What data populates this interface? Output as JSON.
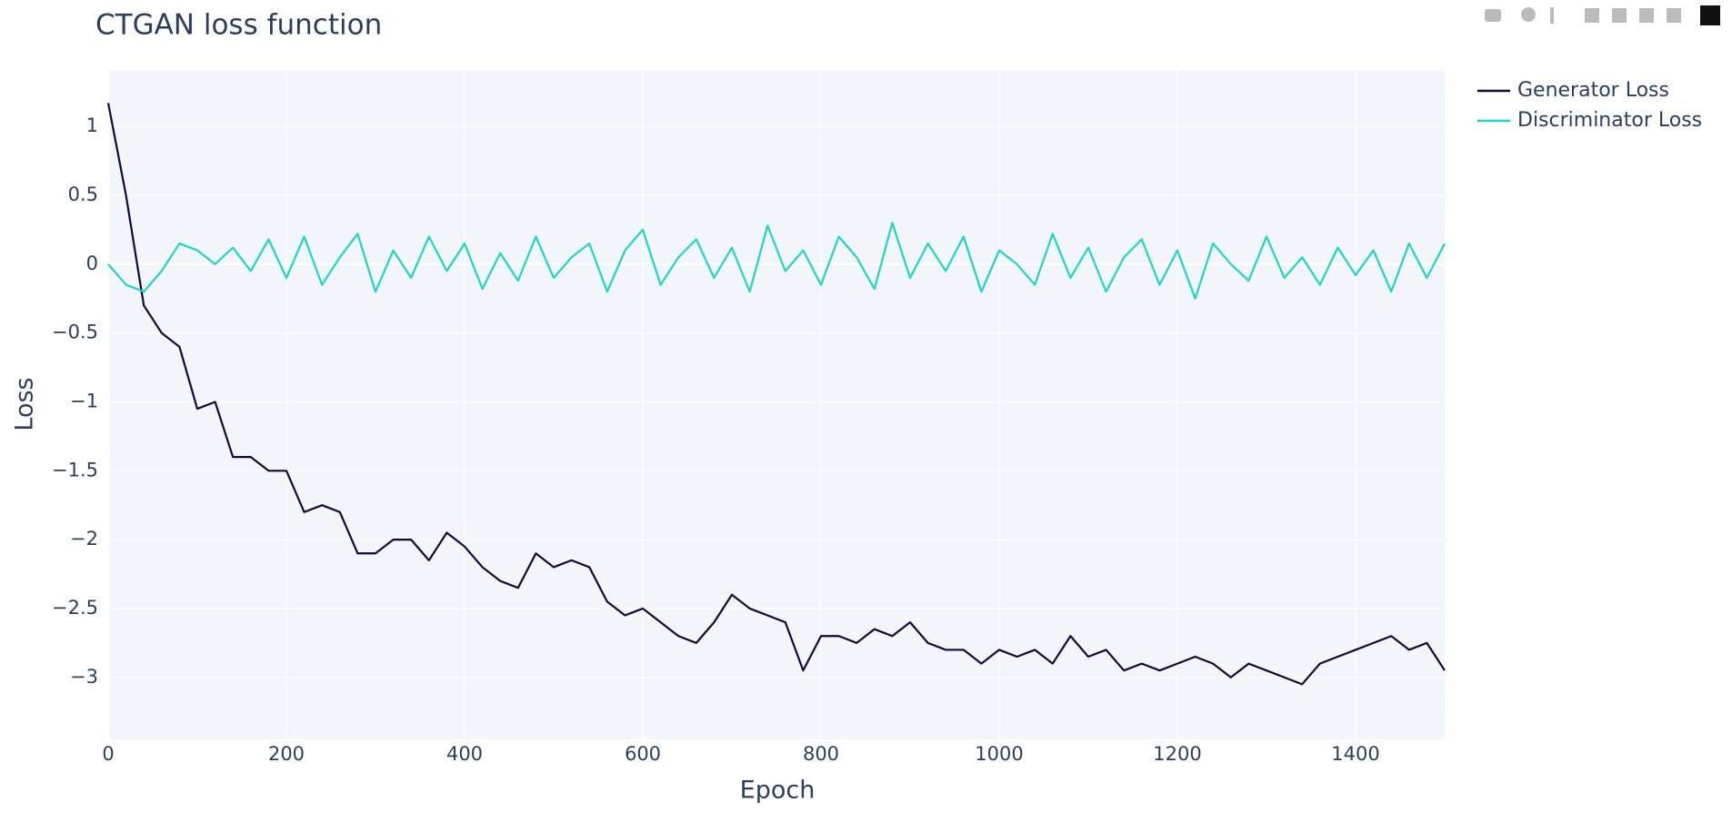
{
  "chart_data": {
    "type": "line",
    "title": "CTGAN loss function",
    "x_label": "Epoch",
    "y_label": "Loss",
    "x": [
      0,
      20,
      40,
      60,
      80,
      100,
      120,
      140,
      160,
      180,
      200,
      220,
      240,
      260,
      280,
      300,
      320,
      340,
      360,
      380,
      400,
      420,
      440,
      460,
      480,
      500,
      520,
      540,
      560,
      580,
      600,
      620,
      640,
      660,
      680,
      700,
      720,
      740,
      760,
      780,
      800,
      820,
      840,
      860,
      880,
      900,
      920,
      940,
      960,
      980,
      1000,
      1020,
      1040,
      1060,
      1080,
      1100,
      1120,
      1140,
      1160,
      1180,
      1200,
      1220,
      1240,
      1260,
      1280,
      1300,
      1320,
      1340,
      1360,
      1380,
      1400,
      1420,
      1440,
      1460,
      1480,
      1500
    ],
    "series": [
      {
        "name": "Generator Loss",
        "color": "#0a0a3c",
        "values": [
          1.17,
          0.5,
          -0.3,
          -0.5,
          -0.6,
          -1.05,
          -1.0,
          -1.4,
          -1.4,
          -1.5,
          -1.5,
          -1.8,
          -1.75,
          -1.8,
          -2.1,
          -2.1,
          -2.0,
          -2.0,
          -2.15,
          -1.95,
          -2.05,
          -2.2,
          -2.3,
          -2.35,
          -2.1,
          -2.2,
          -2.15,
          -2.2,
          -2.45,
          -2.55,
          -2.5,
          -2.6,
          -2.7,
          -2.75,
          -2.6,
          -2.4,
          -2.5,
          -2.55,
          -2.6,
          -2.95,
          -2.7,
          -2.7,
          -2.75,
          -2.65,
          -2.7,
          -2.6,
          -2.75,
          -2.8,
          -2.8,
          -2.9,
          -2.8,
          -2.85,
          -2.8,
          -2.9,
          -2.7,
          -2.85,
          -2.8,
          -2.95,
          -2.9,
          -2.95,
          -2.9,
          -2.85,
          -2.9,
          -3.0,
          -2.9,
          -2.95,
          -3.0,
          -3.05,
          -2.9,
          -2.85,
          -2.8,
          -2.75,
          -2.7,
          -2.8,
          -2.75,
          -2.95
        ]
      },
      {
        "name": "Discriminator Loss",
        "color": "#1dd6c4",
        "values": [
          0,
          -0.15,
          -0.2,
          -0.05,
          0.15,
          0.1,
          0.0,
          0.12,
          -0.05,
          0.18,
          -0.1,
          0.2,
          -0.15,
          0.05,
          0.22,
          -0.2,
          0.1,
          -0.1,
          0.2,
          -0.05,
          0.15,
          -0.18,
          0.08,
          -0.12,
          0.2,
          -0.1,
          0.05,
          0.15,
          -0.2,
          0.1,
          0.25,
          -0.15,
          0.05,
          0.18,
          -0.1,
          0.12,
          -0.2,
          0.28,
          -0.05,
          0.1,
          -0.15,
          0.2,
          0.05,
          -0.18,
          0.3,
          -0.1,
          0.15,
          -0.05,
          0.2,
          -0.2,
          0.1,
          0.0,
          -0.15,
          0.22,
          -0.1,
          0.12,
          -0.2,
          0.05,
          0.18,
          -0.15,
          0.1,
          -0.25,
          0.15,
          0.0,
          -0.12,
          0.2,
          -0.1,
          0.05,
          -0.15,
          0.12,
          -0.08,
          0.1,
          -0.2,
          0.15,
          -0.1,
          0.15
        ]
      }
    ],
    "xlim": [
      0,
      1500
    ],
    "ylim": [
      -3.45,
      1.41
    ],
    "xticks": [
      0,
      200,
      400,
      600,
      800,
      1000,
      1200,
      1400
    ],
    "yticks": [
      1,
      0.5,
      0,
      {
        "value": -0.5,
        "label": "−0.5"
      },
      {
        "value": -1,
        "label": "−1"
      },
      {
        "value": -1.5,
        "label": "−1.5"
      },
      {
        "value": -2,
        "label": "−2"
      },
      {
        "value": -2.5,
        "label": "−2.5"
      },
      {
        "value": -3,
        "label": "−3"
      }
    ],
    "grid": true
  }
}
